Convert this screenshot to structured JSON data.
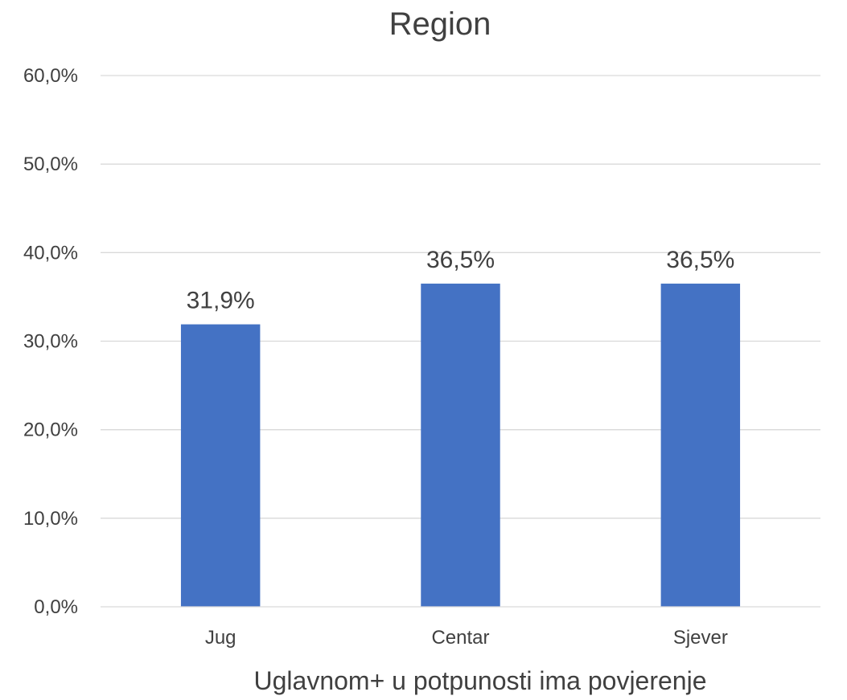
{
  "chart_data": {
    "type": "bar",
    "title": "Region",
    "xlabel": "Uglavnom+ u potpunosti ima povjerenje",
    "ylabel": "",
    "categories": [
      "Jug",
      "Centar",
      "Sjever"
    ],
    "values": [
      31.9,
      36.5,
      36.5
    ],
    "value_labels": [
      "31,9%",
      "36,5%",
      "36,5%"
    ],
    "ylim": [
      0,
      60
    ],
    "yticks": [
      0,
      10,
      20,
      30,
      40,
      50,
      60
    ],
    "ytick_labels": [
      "0,0%",
      "10,0%",
      "20,0%",
      "30,0%",
      "40,0%",
      "50,0%",
      "60,0%"
    ],
    "grid": true,
    "legend": "none",
    "bar_color": "#4472c4"
  }
}
